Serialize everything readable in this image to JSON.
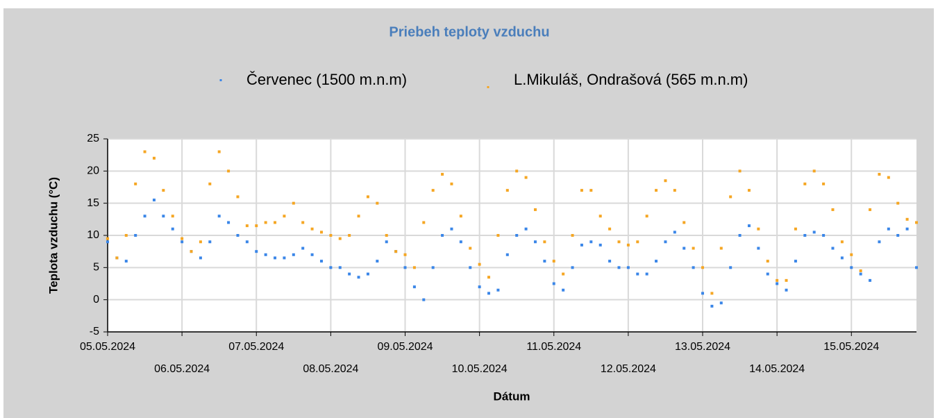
{
  "chart_data": {
    "type": "scatter",
    "title": "Priebeh teploty vzduchu",
    "x_label": "Dátum",
    "y_label": "Teplota vzduchu (°C)",
    "x": [
      "2024-05-05T00:00",
      "2024-05-05T03:00",
      "2024-05-05T06:00",
      "2024-05-05T09:00",
      "2024-05-05T12:00",
      "2024-05-05T15:00",
      "2024-05-05T18:00",
      "2024-05-05T21:00",
      "2024-05-06T00:00",
      "2024-05-06T03:00",
      "2024-05-06T06:00",
      "2024-05-06T09:00",
      "2024-05-06T12:00",
      "2024-05-06T15:00",
      "2024-05-06T18:00",
      "2024-05-06T21:00",
      "2024-05-07T00:00",
      "2024-05-07T03:00",
      "2024-05-07T06:00",
      "2024-05-07T09:00",
      "2024-05-07T12:00",
      "2024-05-07T15:00",
      "2024-05-07T18:00",
      "2024-05-07T21:00",
      "2024-05-08T00:00",
      "2024-05-08T03:00",
      "2024-05-08T06:00",
      "2024-05-08T09:00",
      "2024-05-08T12:00",
      "2024-05-08T15:00",
      "2024-05-08T18:00",
      "2024-05-08T21:00",
      "2024-05-09T00:00",
      "2024-05-09T03:00",
      "2024-05-09T06:00",
      "2024-05-09T09:00",
      "2024-05-09T12:00",
      "2024-05-09T15:00",
      "2024-05-09T18:00",
      "2024-05-09T21:00",
      "2024-05-10T00:00",
      "2024-05-10T03:00",
      "2024-05-10T06:00",
      "2024-05-10T09:00",
      "2024-05-10T12:00",
      "2024-05-10T15:00",
      "2024-05-10T18:00",
      "2024-05-10T21:00",
      "2024-05-11T00:00",
      "2024-05-11T03:00",
      "2024-05-11T06:00",
      "2024-05-11T09:00",
      "2024-05-11T12:00",
      "2024-05-11T15:00",
      "2024-05-11T18:00",
      "2024-05-11T21:00",
      "2024-05-12T00:00",
      "2024-05-12T03:00",
      "2024-05-12T06:00",
      "2024-05-12T09:00",
      "2024-05-12T12:00",
      "2024-05-12T15:00",
      "2024-05-12T18:00",
      "2024-05-12T21:00",
      "2024-05-13T00:00",
      "2024-05-13T03:00",
      "2024-05-13T06:00",
      "2024-05-13T09:00",
      "2024-05-13T12:00",
      "2024-05-13T15:00",
      "2024-05-13T18:00",
      "2024-05-13T21:00",
      "2024-05-14T00:00",
      "2024-05-14T03:00",
      "2024-05-14T06:00",
      "2024-05-14T09:00",
      "2024-05-14T12:00",
      "2024-05-14T15:00",
      "2024-05-14T18:00",
      "2024-05-14T21:00",
      "2024-05-15T00:00",
      "2024-05-15T03:00",
      "2024-05-15T06:00",
      "2024-05-15T09:00",
      "2024-05-15T12:00",
      "2024-05-15T15:00",
      "2024-05-15T18:00",
      "2024-05-15T21:00"
    ],
    "series": [
      {
        "name": "Červenec (1500 m.n.m)",
        "color": "#3a86e8",
        "values": [
          9,
          6.5,
          6,
          10,
          13,
          15.5,
          13,
          11,
          9,
          7.5,
          6.5,
          9,
          13,
          12,
          10,
          9,
          7.5,
          7,
          6.5,
          6.5,
          7,
          8,
          7,
          6,
          5,
          5,
          4,
          3.5,
          4,
          6,
          9,
          7.5,
          5,
          2,
          0,
          5,
          10,
          11,
          9,
          5,
          2,
          1,
          1.5,
          7,
          10,
          11,
          9,
          6,
          2.5,
          1.5,
          5,
          8.5,
          9,
          8.5,
          6,
          5,
          5,
          4,
          4,
          6,
          9,
          10.5,
          8,
          5,
          1,
          -1,
          -0.5,
          5,
          10,
          11.5,
          8,
          4,
          2.5,
          1.5,
          6,
          10,
          10.5,
          10,
          8,
          6.5,
          5,
          4,
          3,
          9,
          11,
          10,
          11,
          5
        ]
      },
      {
        "name": "L.Mikuláš, Ondrašová (565 m.n.m)",
        "color": "#f5a623",
        "values": [
          9.5,
          6.5,
          10,
          18,
          23,
          22,
          17,
          13,
          9.5,
          7.5,
          9,
          18,
          23,
          20,
          16,
          11.5,
          11.5,
          12,
          12,
          13,
          15,
          12,
          11,
          10.5,
          10,
          9.5,
          10,
          13,
          16,
          15,
          10,
          7.5,
          7,
          5,
          12,
          17,
          19.5,
          18,
          13,
          8,
          5.5,
          3.5,
          10,
          17,
          20,
          19,
          14,
          9,
          6,
          4,
          10,
          17,
          17,
          13,
          11,
          9,
          8.5,
          9,
          13,
          17,
          18.5,
          17,
          12,
          8,
          5,
          1,
          8,
          16,
          20,
          17,
          11,
          6,
          3,
          3,
          11,
          18,
          20,
          18,
          14,
          9,
          7,
          4.5,
          14,
          19.5,
          19,
          15,
          12.5,
          12
        ]
      }
    ],
    "xlim": [
      "2024-05-05T00:00",
      "2024-05-15T21:00"
    ],
    "xticks": [
      {
        "value": "2024-05-05T00:00",
        "label": "05.05.2024"
      },
      {
        "value": "2024-05-06T00:00",
        "label": "06.05.2024"
      },
      {
        "value": "2024-05-07T00:00",
        "label": "07.05.2024"
      },
      {
        "value": "2024-05-08T00:00",
        "label": "08.05.2024"
      },
      {
        "value": "2024-05-09T00:00",
        "label": "09.05.2024"
      },
      {
        "value": "2024-05-10T00:00",
        "label": "10.05.2024"
      },
      {
        "value": "2024-05-11T00:00",
        "label": "11.05.2024"
      },
      {
        "value": "2024-05-12T00:00",
        "label": "12.05.2024"
      },
      {
        "value": "2024-05-13T00:00",
        "label": "13.05.2024"
      },
      {
        "value": "2024-05-14T00:00",
        "label": "14.05.2024"
      },
      {
        "value": "2024-05-15T00:00",
        "label": "15.05.2024"
      }
    ],
    "ylim": [
      -5,
      25
    ],
    "yticks": [
      -5,
      0,
      5,
      10,
      15,
      20,
      25
    ],
    "grid": true
  }
}
